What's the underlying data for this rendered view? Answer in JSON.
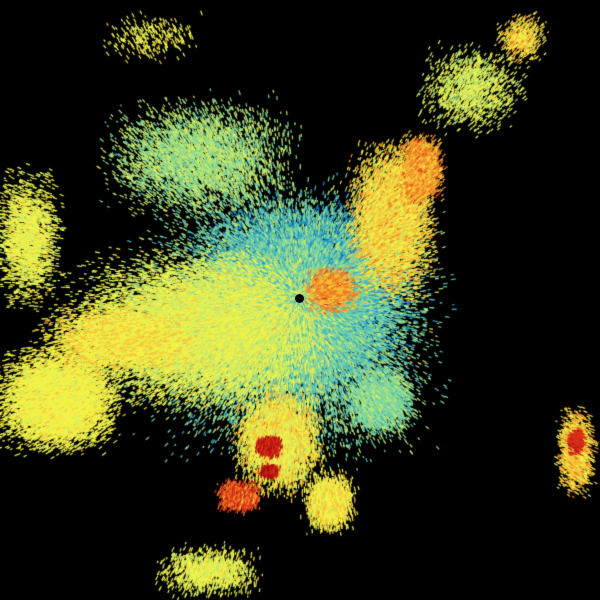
{
  "image": {
    "kind": "radar-reflectivity-sweep",
    "background": "#000000",
    "colormap": [
      "#0a5fa8",
      "#1a8fc9",
      "#3fb6c6",
      "#7fd6a0",
      "#c8ea6a",
      "#f2f24a",
      "#f7c23a",
      "#ee7d22",
      "#d8301a",
      "#a80f0f"
    ],
    "radar_site_marker": "#000000"
  }
}
